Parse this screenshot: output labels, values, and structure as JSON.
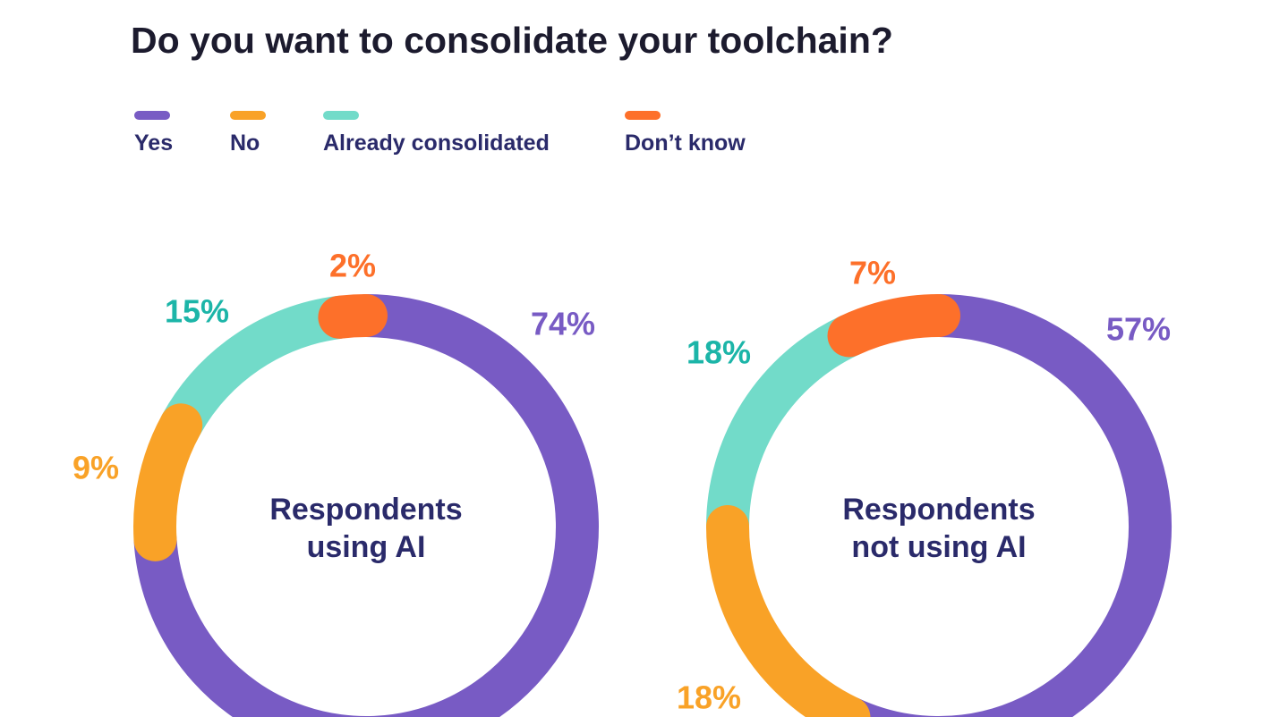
{
  "title": "Do you want to consolidate your toolchain?",
  "colors": {
    "yes": "#785bc4",
    "no": "#f9a227",
    "already": "#72dbc9",
    "dontknow": "#fd702a",
    "label_teal": "#1cb5a8",
    "text": "#2a2a6a"
  },
  "chart_data": [
    {
      "type": "pie",
      "variant": "donut",
      "center_label": [
        "Respondents",
        "using AI"
      ],
      "categories": [
        "Yes",
        "No",
        "Already consolidated",
        "Don’t know"
      ],
      "values": [
        74,
        9,
        15,
        2
      ],
      "labels": [
        "74%",
        "9%",
        "15%",
        "2%"
      ]
    },
    {
      "type": "pie",
      "variant": "donut",
      "center_label": [
        "Respondents",
        "not using AI"
      ],
      "categories": [
        "Yes",
        "No",
        "Already consolidated",
        "Don’t know"
      ],
      "values": [
        57,
        18,
        18,
        7
      ],
      "labels": [
        "57%",
        "18%",
        "18%",
        "7%"
      ]
    }
  ],
  "legend": [
    {
      "label": "Yes",
      "color": "#785bc4"
    },
    {
      "label": "No",
      "color": "#f9a227"
    },
    {
      "label": "Already consolidated",
      "color": "#72dbc9"
    },
    {
      "label": "Don’t know",
      "color": "#fd702a"
    }
  ]
}
